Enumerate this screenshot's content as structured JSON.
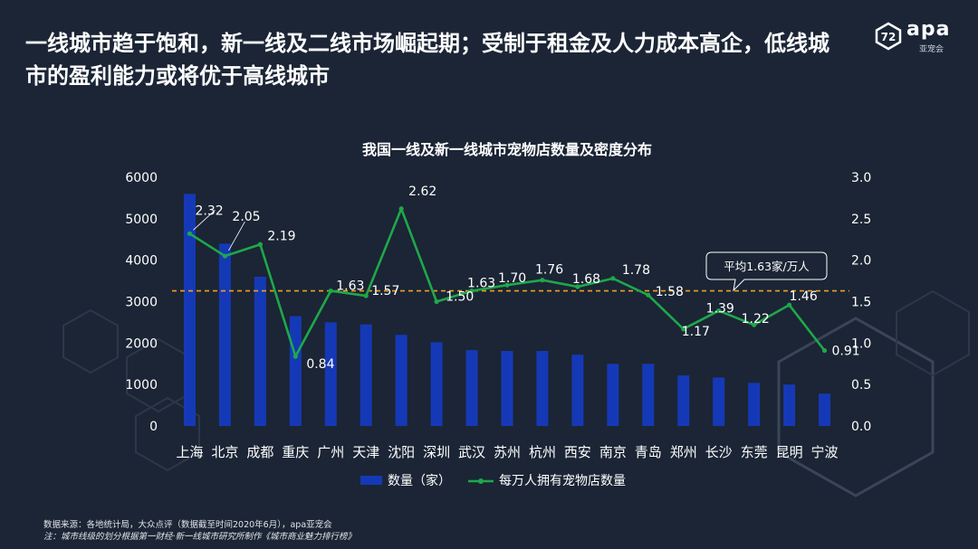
{
  "header": {
    "headline": "一线城市趋于饱和，新一线及二线市场崛起期；受制于租金及人力成本高企，低线城市的盈利能力或将优于高线城市"
  },
  "logo": {
    "text": "apa",
    "subtext": "亚宠会"
  },
  "colors": {
    "background": "#1b2535",
    "bar": "#1539b6",
    "line": "#1ea84a",
    "average_line": "#f0a020"
  },
  "chart_data": {
    "type": "bar",
    "title": "我国一线及新一线城市宠物店数量及密度分布",
    "categories": [
      "上海",
      "北京",
      "成都",
      "重庆",
      "广州",
      "天津",
      "沈阳",
      "深圳",
      "武汉",
      "苏州",
      "杭州",
      "西安",
      "南京",
      "青岛",
      "郑州",
      "长沙",
      "东莞",
      "昆明",
      "宁波"
    ],
    "series": [
      {
        "name": "数量（家）",
        "type": "bar",
        "axis": "left",
        "values": [
          5600,
          4400,
          3600,
          2650,
          2500,
          2450,
          2200,
          2020,
          1830,
          1810,
          1810,
          1720,
          1500,
          1500,
          1220,
          1170,
          1040,
          1000,
          780
        ]
      },
      {
        "name": "每万人拥有宠物店数量",
        "type": "line",
        "axis": "right",
        "values": [
          2.32,
          2.05,
          2.19,
          0.84,
          1.63,
          1.57,
          2.62,
          1.5,
          1.63,
          1.7,
          1.76,
          1.68,
          1.78,
          1.58,
          1.17,
          1.39,
          1.22,
          1.46,
          0.91
        ],
        "labels": [
          "2.32",
          "2.05",
          "2.19",
          "0.84",
          "1.63",
          "1.57",
          "2.62",
          "1.50",
          "1.63",
          "1.70",
          "1.76",
          "1.68",
          "1.78",
          "1.58",
          "1.17",
          "1.39",
          "1.22",
          "1.46",
          "0.91"
        ]
      }
    ],
    "y_left": {
      "min": 0,
      "max": 6000,
      "ticks": [
        "0",
        "1000",
        "2000",
        "3000",
        "4000",
        "5000",
        "6000"
      ]
    },
    "y_right": {
      "min": 0,
      "max": 3.0,
      "ticks": [
        "0.0",
        "0.5",
        "1.0",
        "1.5",
        "2.0",
        "2.5",
        "3.0"
      ]
    },
    "average": {
      "value": 1.63,
      "label": "平均1.63家/万人"
    },
    "legend": {
      "position": "bottom"
    },
    "grid": false
  },
  "footnotes": {
    "source": "数据来源：各地统计局，大众点评（数据截至时间2020年6月），apa亚宠会",
    "note": "注：城市线级的划分根据第一财经·新一线城市研究所制作《城市商业魅力排行榜》"
  }
}
